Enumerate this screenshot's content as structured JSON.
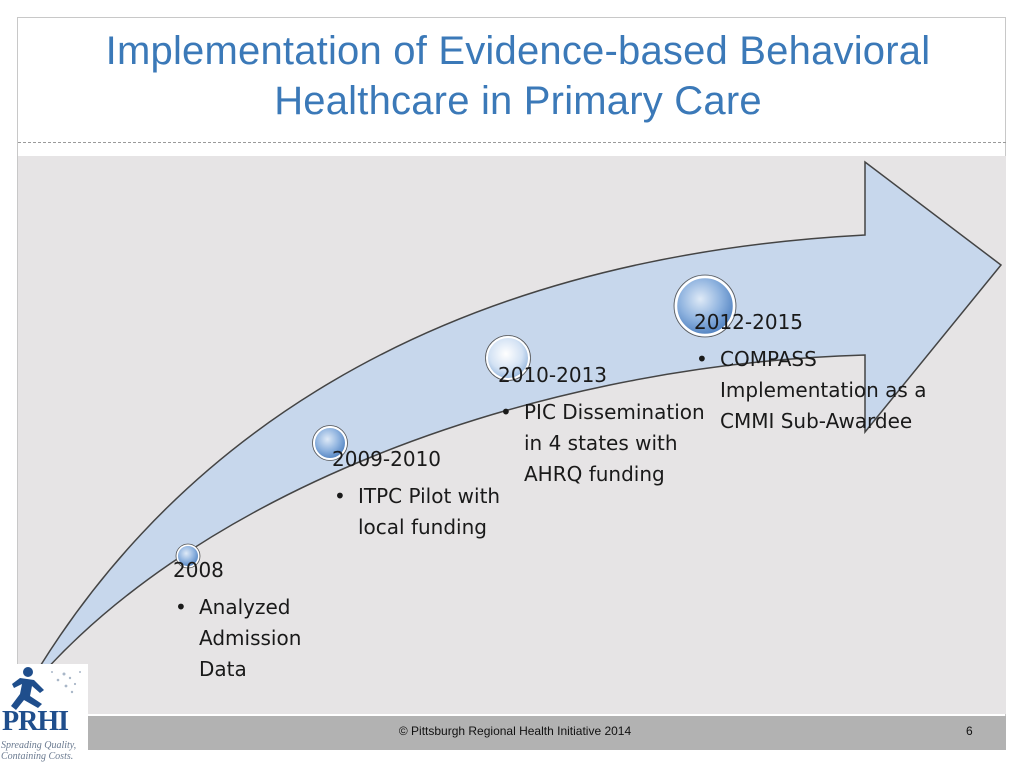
{
  "slide": {
    "title": "Implementation of Evidence-based Behavioral Healthcare in Primary Care",
    "footer": "© Pittsburgh Regional Health Initiative  2014",
    "page_number": "6"
  },
  "logo": {
    "wordmark": "PRHI",
    "tagline": "Spreading Quality, Containing Costs."
  },
  "milestones": [
    {
      "year": "2008",
      "bullet": "Analyzed Admission Data"
    },
    {
      "year": "2009-2010",
      "bullet": "ITPC Pilot with local funding"
    },
    {
      "year": "2010-2013",
      "bullet": "PIC Dissemination in 4 states with AHRQ funding"
    },
    {
      "year": "2012-2015",
      "bullet": "COMPASS Implementation as a CMMI Sub-Awardee"
    }
  ],
  "colors": {
    "title": "#3b79b8",
    "arrow_fill": "#c7d7ec",
    "content_background": "#e6e4e5",
    "footer_band": "#b2b2b2",
    "marker": "#6f9bd0"
  },
  "icons": [
    "timeline-arrow",
    "milestone-marker",
    "prhi-logo"
  ]
}
